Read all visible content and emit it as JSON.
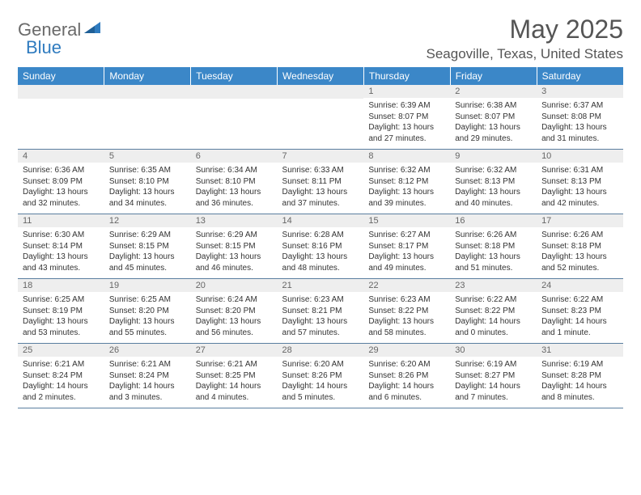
{
  "brand": {
    "part1": "General",
    "part2": "Blue"
  },
  "title": "May 2025",
  "location": "Seagoville, Texas, United States",
  "colors": {
    "header_bg": "#3b87c8",
    "header_text": "#ffffff",
    "daynum_bg": "#eeeeee",
    "daynum_text": "#666666",
    "body_text": "#333333",
    "rule": "#5a7ea0",
    "title_text": "#555555",
    "logo_gray": "#6a6a6a",
    "logo_blue": "#2f7bbf",
    "page_bg": "#ffffff"
  },
  "typography": {
    "month_title_pt": 32,
    "location_pt": 17,
    "weekday_pt": 12,
    "daynum_pt": 11,
    "cell_body_pt": 10,
    "logo_pt": 22
  },
  "weekdays": [
    "Sunday",
    "Monday",
    "Tuesday",
    "Wednesday",
    "Thursday",
    "Friday",
    "Saturday"
  ],
  "weeks": [
    [
      {
        "blank": true
      },
      {
        "blank": true
      },
      {
        "blank": true
      },
      {
        "blank": true
      },
      {
        "n": "1",
        "sr": "6:39 AM",
        "ss": "8:07 PM",
        "dl": "13 hours and 27 minutes."
      },
      {
        "n": "2",
        "sr": "6:38 AM",
        "ss": "8:07 PM",
        "dl": "13 hours and 29 minutes."
      },
      {
        "n": "3",
        "sr": "6:37 AM",
        "ss": "8:08 PM",
        "dl": "13 hours and 31 minutes."
      }
    ],
    [
      {
        "n": "4",
        "sr": "6:36 AM",
        "ss": "8:09 PM",
        "dl": "13 hours and 32 minutes."
      },
      {
        "n": "5",
        "sr": "6:35 AM",
        "ss": "8:10 PM",
        "dl": "13 hours and 34 minutes."
      },
      {
        "n": "6",
        "sr": "6:34 AM",
        "ss": "8:10 PM",
        "dl": "13 hours and 36 minutes."
      },
      {
        "n": "7",
        "sr": "6:33 AM",
        "ss": "8:11 PM",
        "dl": "13 hours and 37 minutes."
      },
      {
        "n": "8",
        "sr": "6:32 AM",
        "ss": "8:12 PM",
        "dl": "13 hours and 39 minutes."
      },
      {
        "n": "9",
        "sr": "6:32 AM",
        "ss": "8:13 PM",
        "dl": "13 hours and 40 minutes."
      },
      {
        "n": "10",
        "sr": "6:31 AM",
        "ss": "8:13 PM",
        "dl": "13 hours and 42 minutes."
      }
    ],
    [
      {
        "n": "11",
        "sr": "6:30 AM",
        "ss": "8:14 PM",
        "dl": "13 hours and 43 minutes."
      },
      {
        "n": "12",
        "sr": "6:29 AM",
        "ss": "8:15 PM",
        "dl": "13 hours and 45 minutes."
      },
      {
        "n": "13",
        "sr": "6:29 AM",
        "ss": "8:15 PM",
        "dl": "13 hours and 46 minutes."
      },
      {
        "n": "14",
        "sr": "6:28 AM",
        "ss": "8:16 PM",
        "dl": "13 hours and 48 minutes."
      },
      {
        "n": "15",
        "sr": "6:27 AM",
        "ss": "8:17 PM",
        "dl": "13 hours and 49 minutes."
      },
      {
        "n": "16",
        "sr": "6:26 AM",
        "ss": "8:18 PM",
        "dl": "13 hours and 51 minutes."
      },
      {
        "n": "17",
        "sr": "6:26 AM",
        "ss": "8:18 PM",
        "dl": "13 hours and 52 minutes."
      }
    ],
    [
      {
        "n": "18",
        "sr": "6:25 AM",
        "ss": "8:19 PM",
        "dl": "13 hours and 53 minutes."
      },
      {
        "n": "19",
        "sr": "6:25 AM",
        "ss": "8:20 PM",
        "dl": "13 hours and 55 minutes."
      },
      {
        "n": "20",
        "sr": "6:24 AM",
        "ss": "8:20 PM",
        "dl": "13 hours and 56 minutes."
      },
      {
        "n": "21",
        "sr": "6:23 AM",
        "ss": "8:21 PM",
        "dl": "13 hours and 57 minutes."
      },
      {
        "n": "22",
        "sr": "6:23 AM",
        "ss": "8:22 PM",
        "dl": "13 hours and 58 minutes."
      },
      {
        "n": "23",
        "sr": "6:22 AM",
        "ss": "8:22 PM",
        "dl": "14 hours and 0 minutes."
      },
      {
        "n": "24",
        "sr": "6:22 AM",
        "ss": "8:23 PM",
        "dl": "14 hours and 1 minute."
      }
    ],
    [
      {
        "n": "25",
        "sr": "6:21 AM",
        "ss": "8:24 PM",
        "dl": "14 hours and 2 minutes."
      },
      {
        "n": "26",
        "sr": "6:21 AM",
        "ss": "8:24 PM",
        "dl": "14 hours and 3 minutes."
      },
      {
        "n": "27",
        "sr": "6:21 AM",
        "ss": "8:25 PM",
        "dl": "14 hours and 4 minutes."
      },
      {
        "n": "28",
        "sr": "6:20 AM",
        "ss": "8:26 PM",
        "dl": "14 hours and 5 minutes."
      },
      {
        "n": "29",
        "sr": "6:20 AM",
        "ss": "8:26 PM",
        "dl": "14 hours and 6 minutes."
      },
      {
        "n": "30",
        "sr": "6:19 AM",
        "ss": "8:27 PM",
        "dl": "14 hours and 7 minutes."
      },
      {
        "n": "31",
        "sr": "6:19 AM",
        "ss": "8:28 PM",
        "dl": "14 hours and 8 minutes."
      }
    ]
  ],
  "labels": {
    "sunrise": "Sunrise: ",
    "sunset": "Sunset: ",
    "daylight": "Daylight: "
  }
}
